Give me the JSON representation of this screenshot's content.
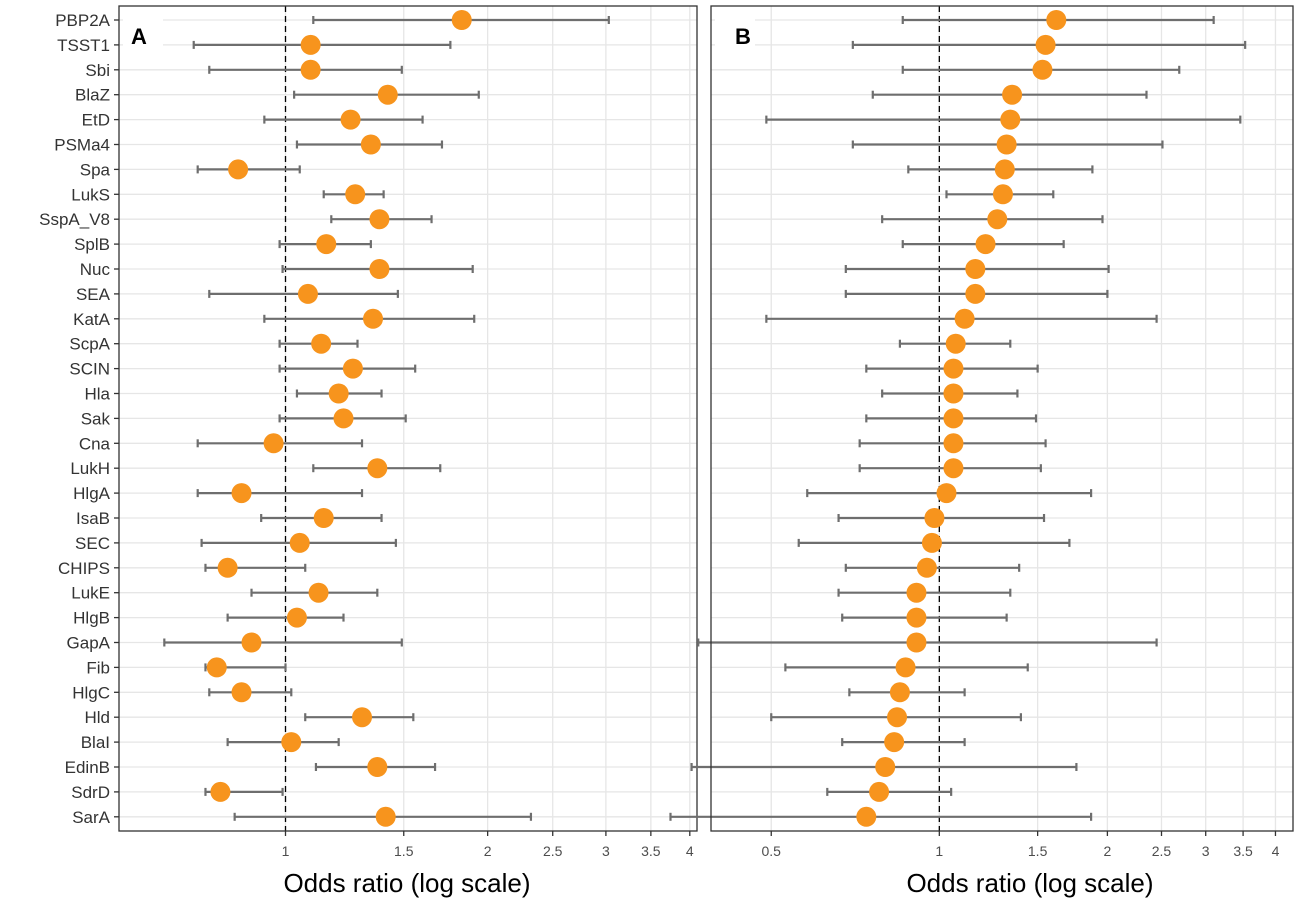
{
  "colors": {
    "point": "#f7941d",
    "errorbar": "#6e6e6e",
    "grid": "#e6e6e6",
    "panel_border": "#333333",
    "reference_line": "#000000",
    "text": "#333333"
  },
  "chart_data": [
    {
      "type": "forest",
      "panel_label": "A",
      "xlabel": "Odds ratio (log scale)",
      "x_scale": "log",
      "xlim": [
        0.565,
        4.1
      ],
      "x_ticks": [
        1,
        1.5,
        2,
        2.5,
        3,
        3.5,
        4
      ],
      "x_tick_labels": [
        "1",
        "1.5",
        "2",
        "2.5",
        "3",
        "3.5",
        "4"
      ],
      "reference_line": 1,
      "categories": [
        "PBP2A",
        "TSST1",
        "Sbi",
        "BlaZ",
        "EtD",
        "PSMa4",
        "Spa",
        "LukS",
        "SspA_V8",
        "SplB",
        "Nuc",
        "SEA",
        "KatA",
        "ScpA",
        "SCIN",
        "Hla",
        "Sak",
        "Cna",
        "LukH",
        "HlgA",
        "IsaB",
        "SEC",
        "CHIPS",
        "LukE",
        "HlgB",
        "GapA",
        "Fib",
        "HlgC",
        "Hld",
        "BlaI",
        "EdinB",
        "SdrD",
        "SarA"
      ],
      "estimates": [
        1.83,
        1.09,
        1.09,
        1.42,
        1.25,
        1.34,
        0.85,
        1.27,
        1.38,
        1.15,
        1.38,
        1.08,
        1.35,
        1.13,
        1.26,
        1.2,
        1.22,
        0.96,
        1.37,
        0.86,
        1.14,
        1.05,
        0.82,
        1.12,
        1.04,
        0.89,
        0.79,
        0.86,
        1.3,
        1.02,
        1.37,
        0.8,
        1.41
      ],
      "lower": [
        1.1,
        0.73,
        0.77,
        1.03,
        0.93,
        1.04,
        0.74,
        1.14,
        1.17,
        0.98,
        0.99,
        0.77,
        0.93,
        0.98,
        0.98,
        1.04,
        0.98,
        0.74,
        1.1,
        0.74,
        0.92,
        0.75,
        0.76,
        0.89,
        0.82,
        0.66,
        0.76,
        0.77,
        1.07,
        0.82,
        1.11,
        0.76,
        0.84
      ],
      "upper": [
        3.03,
        1.76,
        1.49,
        1.94,
        1.6,
        1.71,
        1.05,
        1.4,
        1.65,
        1.34,
        1.9,
        1.47,
        1.91,
        1.28,
        1.56,
        1.39,
        1.51,
        1.3,
        1.7,
        1.3,
        1.39,
        1.46,
        1.07,
        1.37,
        1.22,
        1.49,
        1.0,
        1.02,
        1.55,
        1.2,
        1.67,
        0.99,
        2.32
      ]
    },
    {
      "type": "forest",
      "panel_label": "B",
      "xlabel": "Odds ratio (log scale)",
      "x_scale": "log",
      "xlim": [
        0.39,
        4.3
      ],
      "x_ticks": [
        0.5,
        1,
        1.5,
        2,
        2.5,
        3,
        3.5,
        4
      ],
      "x_tick_labels": [
        "0.5",
        "1",
        "1.5",
        "2",
        "2.5",
        "3",
        "3.5",
        "4"
      ],
      "reference_line": 1,
      "categories": [
        "PBP2A",
        "TSST1",
        "Sbi",
        "BlaZ",
        "EtD",
        "PSMa4",
        "Spa",
        "LukS",
        "SspA_V8",
        "SplB",
        "Nuc",
        "SEA",
        "KatA",
        "ScpA",
        "SCIN",
        "Hla",
        "Sak",
        "Cna",
        "LukH",
        "HlgA",
        "IsaB",
        "SEC",
        "CHIPS",
        "LukE",
        "HlgB",
        "GapA",
        "Fib",
        "HlgC",
        "Hld",
        "BlaI",
        "EdinB",
        "SdrD",
        "SarA"
      ],
      "estimates": [
        1.62,
        1.55,
        1.53,
        1.35,
        1.34,
        1.32,
        1.31,
        1.3,
        1.27,
        1.21,
        1.16,
        1.16,
        1.11,
        1.07,
        1.06,
        1.06,
        1.06,
        1.06,
        1.06,
        1.03,
        0.98,
        0.97,
        0.95,
        0.91,
        0.91,
        0.91,
        0.87,
        0.85,
        0.84,
        0.83,
        0.8,
        0.78,
        0.74
      ],
      "lower": [
        0.86,
        0.7,
        0.86,
        0.76,
        0.49,
        0.7,
        0.88,
        1.03,
        0.79,
        0.86,
        0.68,
        0.68,
        0.49,
        0.85,
        0.74,
        0.79,
        0.74,
        0.72,
        0.72,
        0.58,
        0.66,
        0.56,
        0.68,
        0.66,
        0.67,
        0.37,
        0.53,
        0.69,
        0.5,
        0.67,
        0.36,
        0.63,
        0.33
      ],
      "upper": [
        3.1,
        3.53,
        2.69,
        2.35,
        3.46,
        2.51,
        1.88,
        1.6,
        1.96,
        1.67,
        2.01,
        2.0,
        2.45,
        1.34,
        1.5,
        1.38,
        1.49,
        1.55,
        1.52,
        1.87,
        1.54,
        1.71,
        1.39,
        1.34,
        1.32,
        2.45,
        1.44,
        1.11,
        1.4,
        1.11,
        1.76,
        1.05,
        1.87
      ]
    }
  ]
}
